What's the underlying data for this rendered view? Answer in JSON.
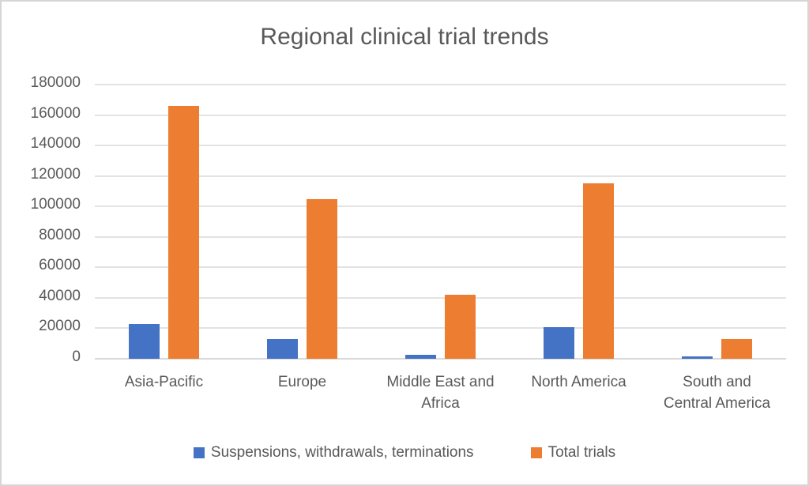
{
  "chart_data": {
    "type": "bar",
    "title": "Regional clinical trial trends",
    "categories": [
      "Asia-Pacific",
      "Europe",
      "Middle East and Africa",
      "North America",
      "South and Central America"
    ],
    "category_label_lines": [
      [
        "Asia-Pacific"
      ],
      [
        "Europe"
      ],
      [
        "Middle East and",
        "Africa"
      ],
      [
        "North America"
      ],
      [
        "South and",
        "Central America"
      ]
    ],
    "series": [
      {
        "name": "Suspensions, withdrawals, terminations",
        "color": "#4472C4",
        "values": [
          23000,
          13000,
          2500,
          20500,
          1800
        ]
      },
      {
        "name": "Total trials",
        "color": "#ED7D31",
        "values": [
          166000,
          105000,
          42000,
          115000,
          13000
        ]
      }
    ],
    "xlabel": "",
    "ylabel": "",
    "ylim": [
      0,
      180000
    ],
    "ytick_step": 20000,
    "yticks": [
      0,
      20000,
      40000,
      60000,
      80000,
      100000,
      120000,
      140000,
      160000,
      180000
    ],
    "grid": "horizontal",
    "legend_position": "bottom"
  },
  "colors": {
    "series_1": "#4472C4",
    "series_2": "#ED7D31",
    "text": "#595959",
    "gridline": "#E3E3E3",
    "axis_line": "#D9D9D9",
    "background": "#FFFFFF",
    "border": "#D6D6D6"
  }
}
